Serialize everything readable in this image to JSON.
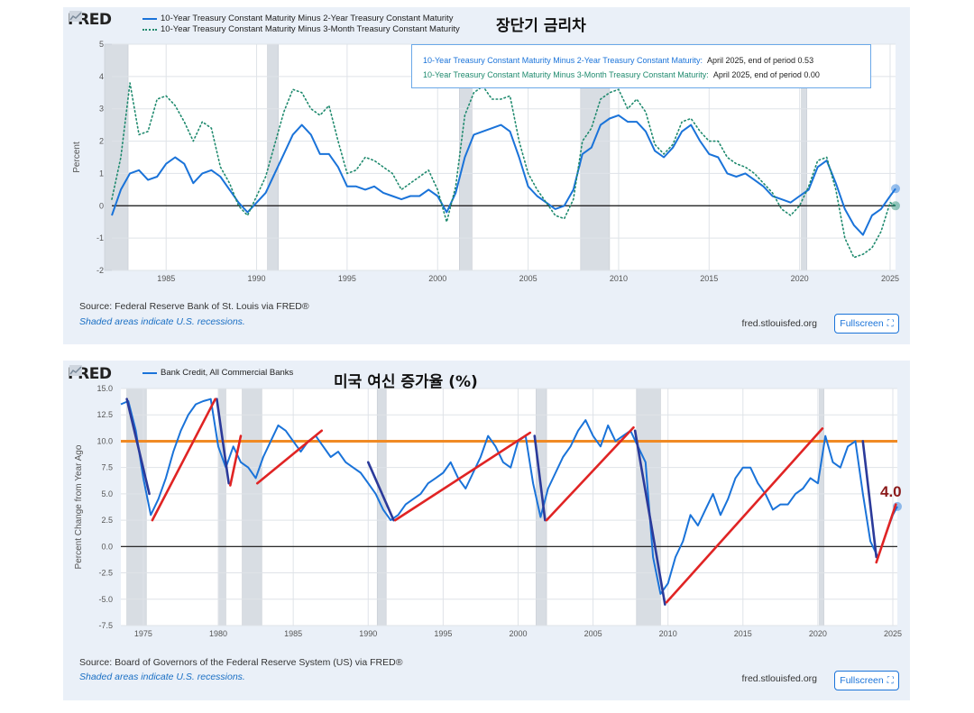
{
  "chart_data": [
    {
      "type": "line",
      "title": "장단기 금리차",
      "ylabel": "Percent",
      "xlabel": "",
      "xlim": [
        1982,
        2025.3
      ],
      "ylim": [
        -2,
        5
      ],
      "x_ticks": [
        "1985",
        "1990",
        "1995",
        "2000",
        "2005",
        "2010",
        "2015",
        "2020",
        "2025"
      ],
      "y_ticks": [
        "-2",
        "-1",
        "0",
        "1",
        "2",
        "3",
        "4",
        "5"
      ],
      "zero_line": true,
      "recessions": [
        [
          1981.6,
          1982.9
        ],
        [
          1990.6,
          1991.2
        ],
        [
          2001.2,
          2001.9
        ],
        [
          2007.9,
          2009.5
        ],
        [
          2020.1,
          2020.4
        ]
      ],
      "series": [
        {
          "name": "10-Year Treasury Constant Maturity Minus 2-Year Treasury Constant Maturity",
          "style": "solid",
          "color": "#1a73d9",
          "x": [
            1982.0,
            1982.5,
            1983.0,
            1983.5,
            1984.0,
            1984.5,
            1985.0,
            1985.5,
            1986.0,
            1986.5,
            1987.0,
            1987.5,
            1988.0,
            1988.5,
            1989.0,
            1989.5,
            1990.0,
            1990.5,
            1991.0,
            1991.5,
            1992.0,
            1992.5,
            1993.0,
            1993.5,
            1994.0,
            1994.5,
            1995.0,
            1995.5,
            1996.0,
            1996.5,
            1997.0,
            1997.5,
            1998.0,
            1998.5,
            1999.0,
            1999.5,
            2000.0,
            2000.5,
            2001.0,
            2001.5,
            2002.0,
            2002.5,
            2003.0,
            2003.5,
            2004.0,
            2004.5,
            2005.0,
            2005.5,
            2006.0,
            2006.5,
            2007.0,
            2007.5,
            2008.0,
            2008.5,
            2009.0,
            2009.5,
            2010.0,
            2010.5,
            2011.0,
            2011.5,
            2012.0,
            2012.5,
            2013.0,
            2013.5,
            2014.0,
            2014.5,
            2015.0,
            2015.5,
            2016.0,
            2016.5,
            2017.0,
            2017.5,
            2018.0,
            2018.5,
            2019.0,
            2019.5,
            2020.0,
            2020.5,
            2021.0,
            2021.5,
            2022.0,
            2022.5,
            2023.0,
            2023.5,
            2024.0,
            2024.5,
            2025.0,
            2025.3
          ],
          "values": [
            -0.3,
            0.5,
            1.0,
            1.1,
            0.8,
            0.9,
            1.3,
            1.5,
            1.3,
            0.7,
            1.0,
            1.1,
            0.9,
            0.5,
            0.1,
            -0.2,
            0.1,
            0.4,
            1.0,
            1.6,
            2.2,
            2.5,
            2.2,
            1.6,
            1.6,
            1.2,
            0.6,
            0.6,
            0.5,
            0.6,
            0.4,
            0.3,
            0.2,
            0.3,
            0.3,
            0.5,
            0.3,
            -0.2,
            0.4,
            1.5,
            2.2,
            2.3,
            2.4,
            2.5,
            2.3,
            1.5,
            0.6,
            0.3,
            0.1,
            -0.1,
            0.0,
            0.5,
            1.6,
            1.8,
            2.5,
            2.7,
            2.8,
            2.6,
            2.6,
            2.3,
            1.7,
            1.5,
            1.8,
            2.3,
            2.5,
            2.0,
            1.6,
            1.5,
            1.0,
            0.9,
            1.0,
            0.8,
            0.6,
            0.3,
            0.2,
            0.1,
            0.3,
            0.5,
            1.2,
            1.4,
            0.7,
            -0.1,
            -0.6,
            -0.9,
            -0.3,
            -0.1,
            0.3,
            0.53
          ]
        },
        {
          "name": "10-Year Treasury Constant Maturity Minus 3-Month Treasury Constant Maturity",
          "style": "dotted",
          "color": "#1f8a6e",
          "x": [
            1982.0,
            1982.5,
            1983.0,
            1983.5,
            1984.0,
            1984.5,
            1985.0,
            1985.5,
            1986.0,
            1986.5,
            1987.0,
            1987.5,
            1988.0,
            1988.5,
            1989.0,
            1989.5,
            1990.0,
            1990.5,
            1991.0,
            1991.5,
            1992.0,
            1992.5,
            1993.0,
            1993.5,
            1994.0,
            1994.5,
            1995.0,
            1995.5,
            1996.0,
            1996.5,
            1997.0,
            1997.5,
            1998.0,
            1998.5,
            1999.0,
            1999.5,
            2000.0,
            2000.5,
            2001.0,
            2001.5,
            2002.0,
            2002.5,
            2003.0,
            2003.5,
            2004.0,
            2004.5,
            2005.0,
            2005.5,
            2006.0,
            2006.5,
            2007.0,
            2007.5,
            2008.0,
            2008.5,
            2009.0,
            2009.5,
            2010.0,
            2010.5,
            2011.0,
            2011.5,
            2012.0,
            2012.5,
            2013.0,
            2013.5,
            2014.0,
            2014.5,
            2015.0,
            2015.5,
            2016.0,
            2016.5,
            2017.0,
            2017.5,
            2018.0,
            2018.5,
            2019.0,
            2019.5,
            2020.0,
            2020.5,
            2021.0,
            2021.5,
            2022.0,
            2022.5,
            2023.0,
            2023.5,
            2024.0,
            2024.5,
            2025.0,
            2025.3
          ],
          "values": [
            0.2,
            1.5,
            3.8,
            2.2,
            2.3,
            3.3,
            3.4,
            3.1,
            2.6,
            2.0,
            2.6,
            2.4,
            1.2,
            0.7,
            0.0,
            -0.3,
            0.3,
            0.9,
            1.9,
            2.9,
            3.6,
            3.5,
            3.0,
            2.8,
            3.1,
            2.0,
            1.0,
            1.1,
            1.5,
            1.4,
            1.2,
            1.0,
            0.5,
            0.7,
            0.9,
            1.1,
            0.5,
            -0.5,
            0.6,
            2.8,
            3.5,
            3.7,
            3.3,
            3.3,
            3.4,
            2.0,
            1.0,
            0.5,
            0.1,
            -0.3,
            -0.4,
            0.2,
            2.0,
            2.4,
            3.3,
            3.5,
            3.6,
            3.0,
            3.3,
            2.9,
            1.9,
            1.6,
            1.9,
            2.6,
            2.7,
            2.3,
            2.0,
            2.0,
            1.5,
            1.3,
            1.2,
            1.0,
            0.7,
            0.4,
            -0.1,
            -0.3,
            0.0,
            0.6,
            1.4,
            1.5,
            0.5,
            -1.0,
            -1.6,
            -1.5,
            -1.3,
            -0.8,
            0.1,
            0.0
          ]
        }
      ],
      "tooltip": {
        "row1_label": "10-Year Treasury Constant Maturity Minus 2-Year Treasury Constant Maturity:",
        "row1_value": "April 2025, end of period 0.53",
        "row2_label": "10-Year Treasury Constant Maturity Minus 3-Month Treasury Constant Maturity:",
        "row2_value": "April 2025, end of period 0.00"
      }
    },
    {
      "type": "line",
      "title": "미국 여신 증가율 (%)",
      "ylabel": "Percent Change from Year Ago",
      "xlabel": "",
      "xlim": [
        1973.5,
        2025.3
      ],
      "ylim": [
        -7.5,
        15.0
      ],
      "x_ticks": [
        "1975",
        "1980",
        "1985",
        "1990",
        "1995",
        "2000",
        "2005",
        "2010",
        "2015",
        "2020",
        "2025"
      ],
      "y_ticks": [
        "-7.5",
        "-5.0",
        "-2.5",
        "0.0",
        "2.5",
        "5.0",
        "7.5",
        "10.0",
        "12.5",
        "15.0"
      ],
      "zero_line": true,
      "reference_line": {
        "value": 10.0,
        "color": "#f08a24"
      },
      "recessions": [
        [
          1973.9,
          1975.2
        ],
        [
          1980.0,
          1980.5
        ],
        [
          1981.6,
          1982.9
        ],
        [
          1990.6,
          1991.2
        ],
        [
          2001.2,
          2001.9
        ],
        [
          2007.9,
          2009.5
        ],
        [
          2020.1,
          2020.4
        ]
      ],
      "series": [
        {
          "name": "Bank Credit, All Commercial Banks",
          "style": "solid",
          "color": "#1a73d9",
          "x": [
            1973.5,
            1974.0,
            1974.5,
            1975.0,
            1975.5,
            1976.0,
            1976.5,
            1977.0,
            1977.5,
            1978.0,
            1978.5,
            1979.0,
            1979.5,
            1980.0,
            1980.5,
            1981.0,
            1981.5,
            1982.0,
            1982.5,
            1983.0,
            1983.5,
            1984.0,
            1984.5,
            1985.0,
            1985.5,
            1986.0,
            1986.5,
            1987.0,
            1987.5,
            1988.0,
            1988.5,
            1989.0,
            1989.5,
            1990.0,
            1990.5,
            1991.0,
            1991.5,
            1992.0,
            1992.5,
            1993.0,
            1993.5,
            1994.0,
            1994.5,
            1995.0,
            1995.5,
            1996.0,
            1996.5,
            1997.0,
            1997.5,
            1998.0,
            1998.5,
            1999.0,
            1999.5,
            2000.0,
            2000.5,
            2001.0,
            2001.5,
            2002.0,
            2002.5,
            2003.0,
            2003.5,
            2004.0,
            2004.5,
            2005.0,
            2005.5,
            2006.0,
            2006.5,
            2007.0,
            2007.5,
            2008.0,
            2008.5,
            2009.0,
            2009.5,
            2010.0,
            2010.5,
            2011.0,
            2011.5,
            2012.0,
            2012.5,
            2013.0,
            2013.5,
            2014.0,
            2014.5,
            2015.0,
            2015.5,
            2016.0,
            2016.5,
            2017.0,
            2017.5,
            2018.0,
            2018.5,
            2019.0,
            2019.5,
            2020.0,
            2020.5,
            2021.0,
            2021.5,
            2022.0,
            2022.5,
            2023.0,
            2023.5,
            2024.0,
            2024.5,
            2025.0,
            2025.3
          ],
          "values": [
            13.5,
            13.8,
            11.0,
            6.5,
            3.0,
            4.5,
            6.5,
            9.0,
            11.0,
            12.5,
            13.5,
            13.8,
            14.0,
            9.5,
            7.5,
            9.5,
            8.0,
            7.5,
            6.5,
            8.5,
            10.0,
            11.5,
            11.0,
            10.0,
            9.0,
            10.0,
            10.5,
            9.5,
            8.5,
            9.0,
            8.0,
            7.5,
            7.0,
            6.0,
            5.0,
            3.5,
            2.5,
            3.0,
            4.0,
            4.5,
            5.0,
            6.0,
            6.5,
            7.0,
            8.0,
            6.5,
            5.5,
            7.0,
            8.5,
            10.5,
            9.5,
            8.0,
            7.5,
            10.0,
            10.5,
            6.0,
            2.8,
            5.5,
            7.0,
            8.5,
            9.5,
            11.0,
            12.0,
            10.5,
            9.5,
            11.5,
            10.0,
            10.5,
            11.0,
            9.5,
            8.0,
            -1.0,
            -4.5,
            -3.5,
            -1.0,
            0.5,
            3.0,
            2.0,
            3.5,
            5.0,
            3.0,
            4.5,
            6.5,
            7.5,
            7.5,
            6.0,
            5.0,
            3.5,
            4.0,
            4.0,
            5.0,
            5.5,
            6.5,
            6.0,
            10.5,
            8.0,
            7.5,
            9.5,
            10.0,
            5.0,
            0.5,
            -1.0,
            1.0,
            3.0,
            3.8
          ]
        }
      ],
      "trend_lines": {
        "down": [
          [
            1973.9,
            14.0,
            1975.4,
            5.0
          ],
          [
            1979.9,
            14.0,
            1980.7,
            6.0
          ],
          [
            1990.0,
            8.0,
            1991.7,
            2.5
          ],
          [
            2001.1,
            10.5,
            2001.8,
            2.5
          ],
          [
            2007.8,
            11.0,
            2009.8,
            -5.5
          ],
          [
            2023.0,
            10.0,
            2023.9,
            -1.0
          ]
        ],
        "up": [
          [
            1975.6,
            2.5,
            1979.8,
            14.0
          ],
          [
            1980.8,
            5.8,
            1981.5,
            10.5
          ],
          [
            1982.6,
            6.0,
            1986.9,
            11.0
          ],
          [
            1991.8,
            2.5,
            2000.8,
            10.8
          ],
          [
            2001.9,
            2.5,
            2007.7,
            11.3
          ],
          [
            2009.9,
            -5.3,
            2020.3,
            11.2
          ],
          [
            2023.9,
            -1.5,
            2025.2,
            4.0
          ]
        ]
      },
      "annotation": "4.0"
    }
  ],
  "panel1": {
    "logo": "FRED",
    "ko_title": "장단기 금리차",
    "legend": [
      "10-Year Treasury Constant Maturity Minus 2-Year Treasury Constant Maturity",
      "10-Year Treasury Constant Maturity Minus 3-Month Treasury Constant Maturity"
    ],
    "ylabel": "Percent",
    "source": "Source: Federal Reserve Bank of St. Louis via FRED®",
    "shade_note": "Shaded areas indicate U.S. recessions.",
    "url": "fred.stlouisfed.org",
    "fullscreen": "Fullscreen"
  },
  "panel2": {
    "logo": "FRED",
    "ko_title": "미국 여신 증가율 (%)",
    "legend": [
      "Bank Credit, All Commercial Banks"
    ],
    "ylabel": "Percent Change from Year Ago",
    "source": "Source: Board of Governors of the Federal Reserve System (US) via FRED®",
    "shade_note": "Shaded areas indicate U.S. recessions.",
    "url": "fred.stlouisfed.org",
    "fullscreen": "Fullscreen",
    "annotation": "4.0"
  },
  "colors": {
    "line_blue": "#1a73d9",
    "dot_green": "#1f8a6e",
    "recession_gray": "#d8dde3",
    "orange_ref": "#f08a24",
    "trend_red": "#e02424",
    "trend_navy": "#2b3a9a",
    "annotation": "#8b1a1a"
  }
}
